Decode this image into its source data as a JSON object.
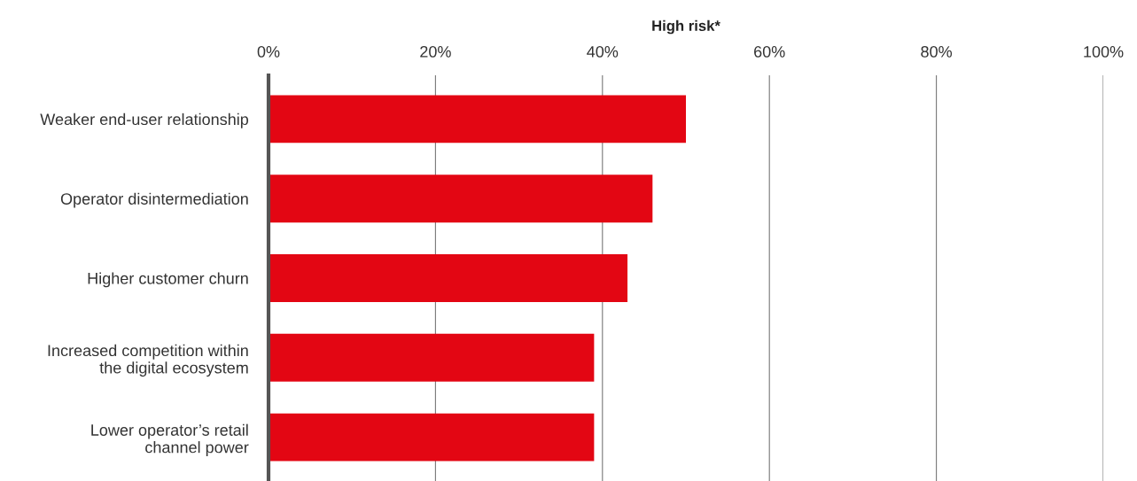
{
  "chart_data": {
    "type": "bar",
    "orientation": "horizontal",
    "xlabel": "High risk*",
    "categories": [
      "Weaker end-user relationship",
      "Operator disintermediation",
      "Higher customer churn",
      "Increased competition within\nthe digital ecosystem",
      "Lower operator’s retail\nchannel power"
    ],
    "values": [
      50,
      46,
      43,
      39,
      39
    ],
    "color": "#e30613",
    "xlim": [
      0,
      100
    ],
    "xticks": [
      {
        "value": 0,
        "label": "0%"
      },
      {
        "value": 20,
        "label": "20%"
      },
      {
        "value": 40,
        "label": "40%"
      },
      {
        "value": 60,
        "label": "60%"
      },
      {
        "value": 80,
        "label": "80%"
      },
      {
        "value": 100,
        "label": "100%"
      }
    ],
    "grid": "x",
    "legend": false
  }
}
